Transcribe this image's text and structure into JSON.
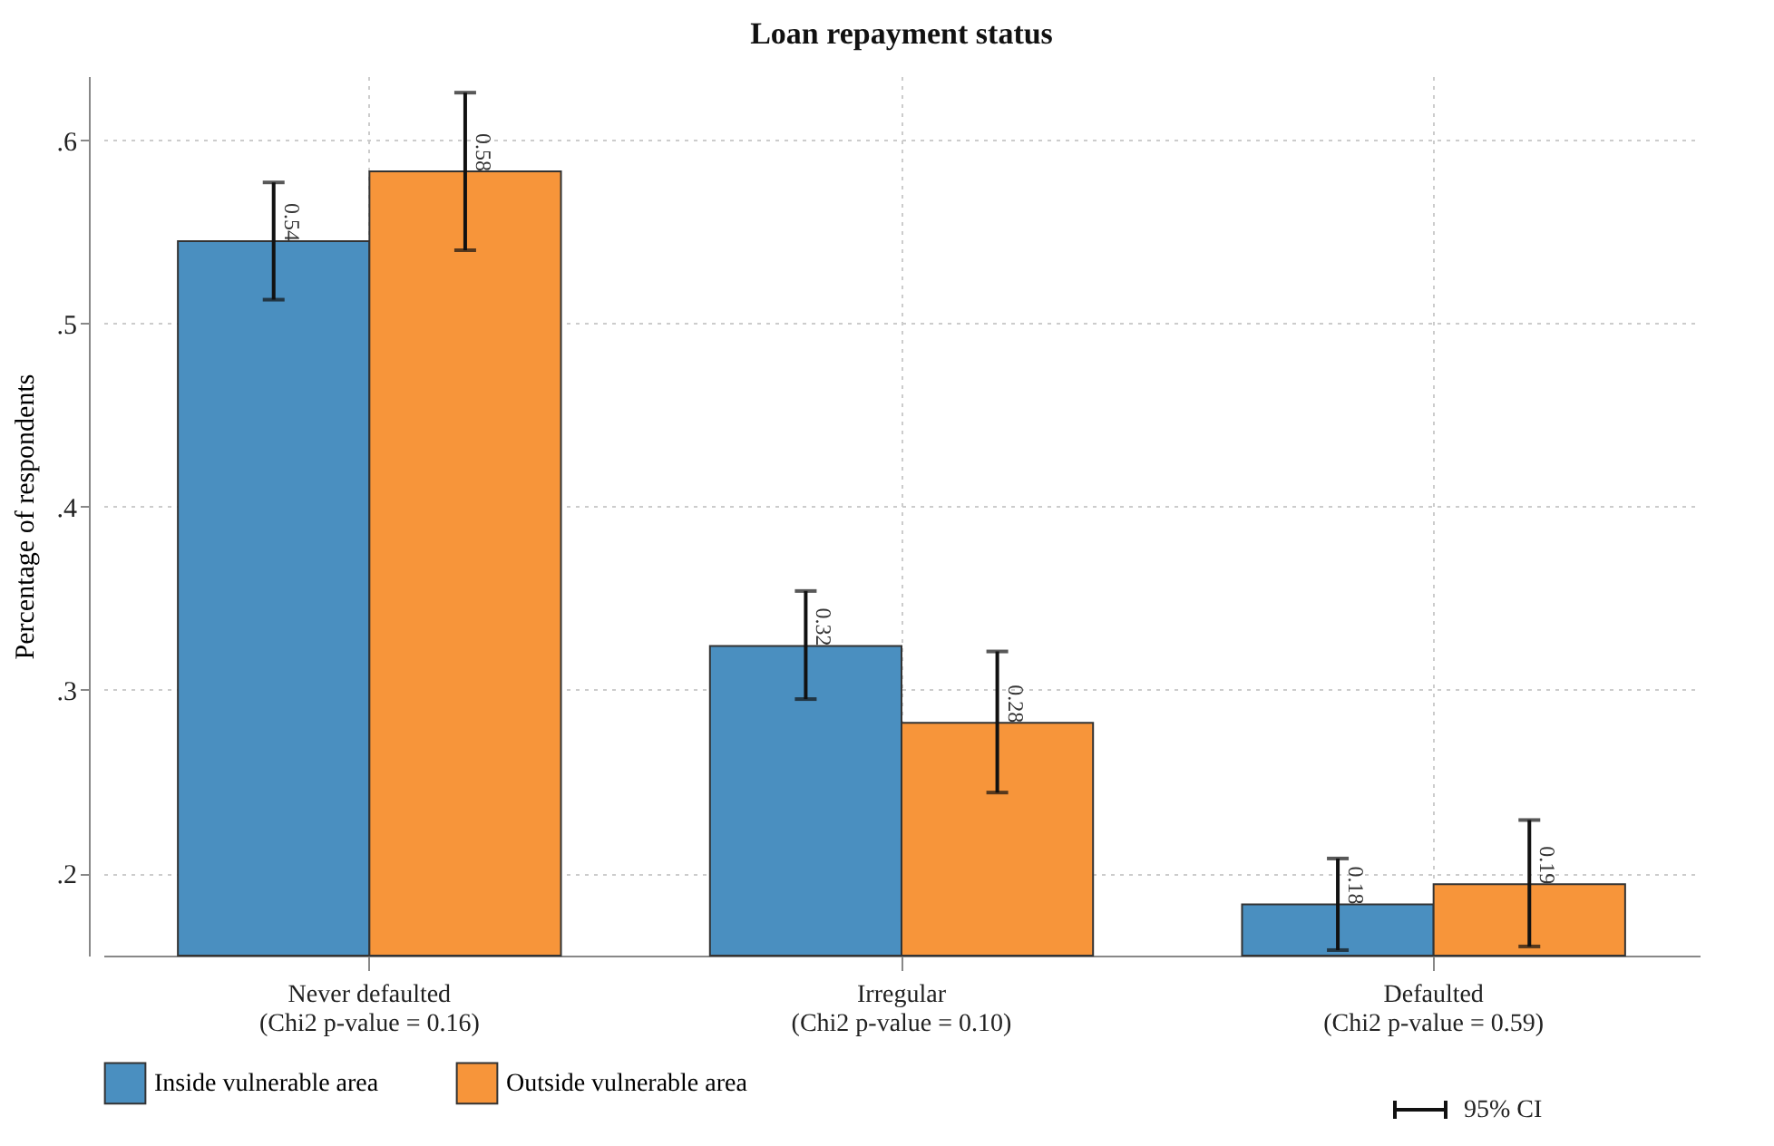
{
  "chart_data": {
    "type": "bar",
    "title": "Loan repayment status",
    "ylabel": "Percentage of respondents",
    "categories": [
      "Never defaulted\n(Chi2 p-value = 0.16)",
      "Irregular\n(Chi2 p-value = 0.10)",
      "Defaulted\n(Chi2 p-value = 0.59)"
    ],
    "series": [
      {
        "name": "Inside vulnerable area",
        "color": "#4a8fc0",
        "values": [
          0.545,
          0.324,
          0.183
        ],
        "errors": [
          [
            0.513,
            0.577
          ],
          [
            0.295,
            0.354
          ],
          [
            0.158,
            0.208
          ]
        ],
        "value_labels": [
          "0.54",
          "0.32",
          "0.18"
        ]
      },
      {
        "name": "Outside vulnerable area",
        "color": "#f7953a",
        "values": [
          0.583,
          0.282,
          0.194
        ],
        "errors": [
          [
            0.54,
            0.626
          ],
          [
            0.244,
            0.321
          ],
          [
            0.16,
            0.229
          ]
        ],
        "value_labels": [
          "0.58",
          "0.28",
          "0.19"
        ]
      }
    ],
    "ylim": [
      0.155,
      0.635
    ],
    "yticks": [
      {
        "value": 0.2,
        "label": ".2"
      },
      {
        "value": 0.3,
        "label": ".3"
      },
      {
        "value": 0.4,
        "label": ".4"
      },
      {
        "value": 0.5,
        "label": ".5"
      },
      {
        "value": 0.6,
        "label": ".6"
      }
    ],
    "grid": true,
    "legend": "bottom",
    "annotations": [
      "95% CI"
    ]
  }
}
